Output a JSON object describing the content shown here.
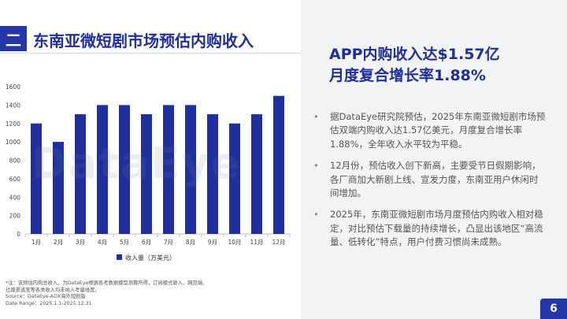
{
  "section": {
    "badge": "二",
    "title": "东南亚微短剧市场预估内购收入"
  },
  "chart_data": {
    "type": "bar",
    "categories": [
      "1月",
      "2月",
      "3月",
      "4月",
      "5月",
      "6月",
      "7月",
      "8月",
      "9月",
      "10月",
      "11月",
      "12月"
    ],
    "series": [
      {
        "name": "收入量（万美元）",
        "values": [
          1200,
          1000,
          1300,
          1400,
          1400,
          1300,
          1400,
          1400,
          1300,
          1200,
          1300,
          1500
        ]
      }
    ],
    "yticks": [
      "0",
      "200",
      "400",
      "600",
      "800",
      "1000",
      "1200",
      "1400",
      "1600"
    ],
    "ylim": [
      0,
      1600
    ],
    "legend_position": "bottom",
    "grid": false,
    "bar_color": "#1f2f9e"
  },
  "watermark": "DataEye",
  "footnote": {
    "line1": "*注：该预估内购总收入，为DataEye根据各考数据模型测算所得，订阅模式收入、网页端、",
    "line2": "  社媒渠道至等各类收入均未纳入考量维度。",
    "line3": "Source：DataEye-ADX海外短剧版",
    "line4": "Date Range：2025.1.1-2025.12.31"
  },
  "headline": {
    "line1": "APP内购收入达$1.57亿",
    "line2": "月度复合增长率1.88%"
  },
  "bullets": [
    "据DataEye研究院预估，2025年东南亚微短剧市场预估双端内购收入达1.57亿美元，月度复合增长率1.88%，全年收入水平较为平稳。",
    "12月份，预估收入创下新高，主要受节日假期影响，各厂商加大新剧上线、宣发力度，东南亚用户休闲时间增加。",
    "2025年，东南亚微短剧市场月度预估内购收入相对稳定，对比预估下载量的持续增长，凸显出该地区“高流量、低转化”特点，用户付费习惯尚未成熟。"
  ],
  "page_number": "6",
  "colors": {
    "accent": "#2436a8",
    "title": "#1f2f9e",
    "panel": "#f2f3f5"
  }
}
